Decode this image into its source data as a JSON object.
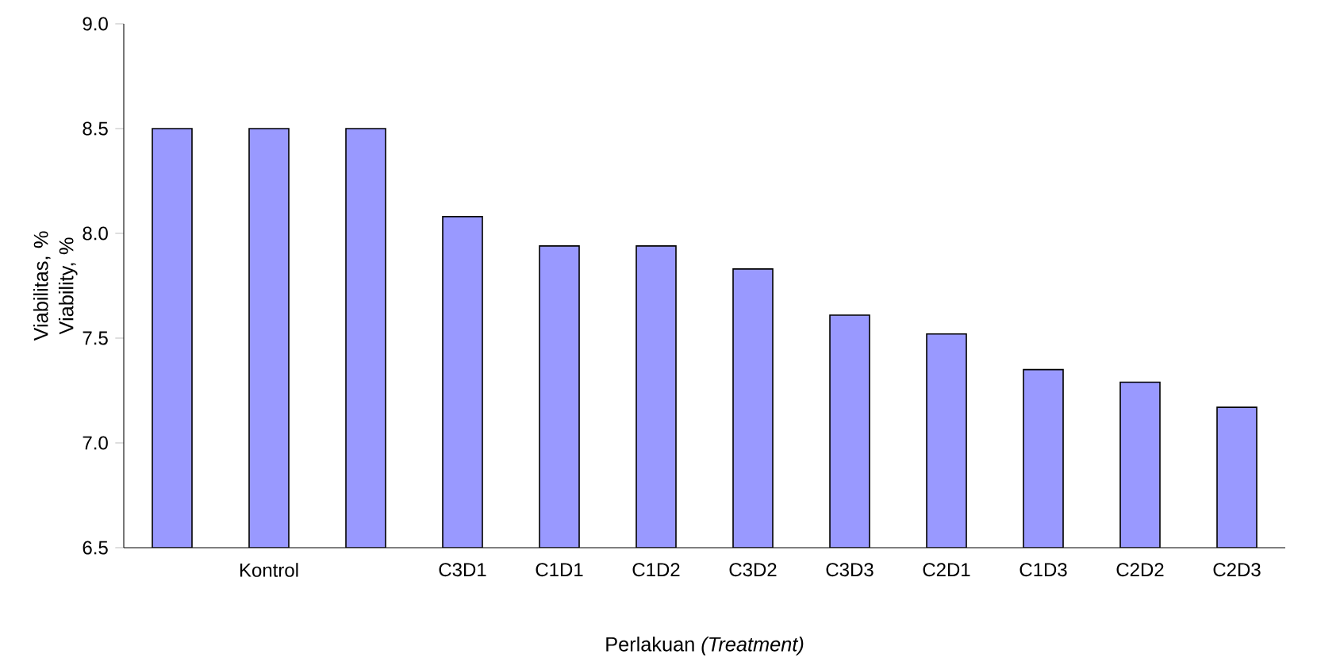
{
  "chart_data": {
    "type": "bar",
    "xlabel": "Perlakuan *(Treatment)*",
    "ylabel": "Viabilitas, % Viability, %",
    "categories": [
      null,
      "Kontrol",
      null,
      "C3D1",
      "C1D1",
      "C1D2",
      "C3D2",
      "C3D3",
      "C2D1",
      "C1D3",
      "C2D2",
      "C2D3"
    ],
    "values": [
      8.5,
      8.5,
      8.5,
      8.08,
      7.94,
      7.94,
      7.83,
      7.61,
      7.52,
      7.35,
      7.29,
      7.17
    ],
    "color": "#9999ff",
    "ylim": [
      6.5,
      9.0
    ],
    "yticks": [
      {
        "value": 6.5,
        "label": "6.5"
      },
      {
        "value": 7.0,
        "label": "7.0"
      },
      {
        "value": 7.5,
        "label": "7.5"
      },
      {
        "value": 8.0,
        "label": "8.0"
      },
      {
        "value": 8.5,
        "label": "8.5"
      },
      {
        "value": 9.0,
        "label": "9.0"
      }
    ],
    "grid": false
  }
}
